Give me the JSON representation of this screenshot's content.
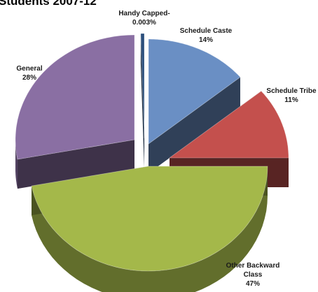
{
  "chart_data": {
    "type": "pie",
    "title": "Students 2007-12",
    "categories": [
      "Handy Capped",
      "Schedule Caste",
      "Schedule Tribe",
      "Other Backward Class",
      "General"
    ],
    "values": [
      0.003,
      14,
      11,
      47,
      28
    ],
    "value_labels": [
      "0.003%",
      "14%",
      "11%",
      "47%",
      "28%"
    ],
    "display_names": [
      "Handy Capped-",
      "Schedule Caste",
      "Schedule Tribe",
      "Other Backward Class",
      "General"
    ],
    "colors": [
      "#2c4f7c",
      "#6a8fc4",
      "#c4504d",
      "#a4b84a",
      "#8a6fa3"
    ],
    "style": "3d-exploded"
  }
}
